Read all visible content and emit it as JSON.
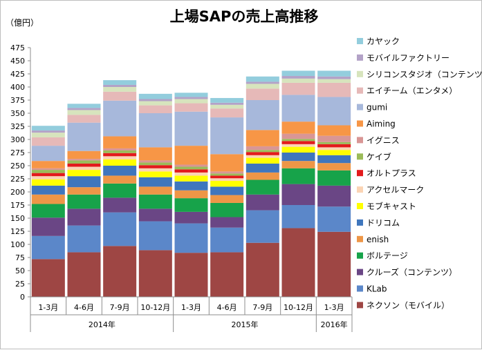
{
  "chart_data": {
    "type": "bar",
    "stacked": true,
    "title": "上場SAPの売上高推移",
    "unit_label": "（億円）",
    "ylim": [
      0,
      475
    ],
    "ytick_step": 25,
    "grid": false,
    "legend_position": "right",
    "categories": [
      "1-3月",
      "4-6月",
      "7-9月",
      "10-12月",
      "1-3月",
      "4-6月",
      "7-9月",
      "10-12月",
      "1-3月"
    ],
    "groups": [
      {
        "label": "2014年",
        "span": 4
      },
      {
        "label": "2015年",
        "span": 4
      },
      {
        "label": "2016年",
        "span": 1
      }
    ],
    "series": [
      {
        "name": "ネクソン（モバイル）",
        "color": "#9e4644",
        "values": [
          72,
          85,
          97,
          89,
          84,
          85,
          103,
          131,
          124
        ]
      },
      {
        "name": "KLab",
        "color": "#5b87c9",
        "values": [
          44,
          51,
          64,
          55,
          56,
          47,
          62,
          44,
          48
        ]
      },
      {
        "name": "クルーズ（コンテンツ）",
        "color": "#6a4685",
        "values": [
          35,
          32,
          28,
          24,
          22,
          20,
          30,
          40,
          40
        ]
      },
      {
        "name": "ボルテージ",
        "color": "#17a34a",
        "values": [
          26,
          27,
          27,
          27,
          26,
          27,
          28,
          30,
          29
        ]
      },
      {
        "name": "enish",
        "color": "#ee9647",
        "values": [
          18,
          14,
          15,
          15,
          15,
          15,
          14,
          14,
          14
        ]
      },
      {
        "name": "ドリコム",
        "color": "#3f76bd",
        "values": [
          17,
          21,
          19,
          18,
          17,
          16,
          17,
          16,
          15
        ]
      },
      {
        "name": "モブキャスト",
        "color": "#ffff00",
        "values": [
          12,
          12,
          12,
          11,
          11,
          11,
          11,
          11,
          10
        ]
      },
      {
        "name": "アクセルマーク",
        "color": "#fbd4b4",
        "values": [
          6,
          6,
          6,
          6,
          6,
          5,
          5,
          5,
          5
        ]
      },
      {
        "name": "オルトプラス",
        "color": "#e31a1c",
        "values": [
          6,
          6,
          6,
          6,
          6,
          5,
          6,
          6,
          6
        ]
      },
      {
        "name": "ケイブ",
        "color": "#9bbb59",
        "values": [
          6,
          6,
          5,
          5,
          5,
          4,
          4,
          4,
          4
        ]
      },
      {
        "name": "イグニス",
        "color": "#d99695",
        "values": [
          3,
          3,
          4,
          4,
          4,
          4,
          7,
          10,
          12
        ]
      },
      {
        "name": "Aiming",
        "color": "#f79646",
        "values": [
          14,
          15,
          23,
          25,
          36,
          33,
          31,
          23,
          20
        ]
      },
      {
        "name": "gumi",
        "color": "#a7b8db",
        "values": [
          29,
          54,
          68,
          65,
          65,
          70,
          57,
          51,
          54
        ]
      },
      {
        "name": "エイチーム（エンタメ）",
        "color": "#e6b9b8",
        "values": [
          16,
          15,
          17,
          15,
          16,
          17,
          22,
          23,
          27
        ]
      },
      {
        "name": "シリコンスタジオ（コンテンツ）",
        "color": "#d7e4bd",
        "values": [
          9,
          9,
          9,
          8,
          8,
          7,
          9,
          8,
          7
        ]
      },
      {
        "name": "モバイルファクトリー",
        "color": "#b3a2c7",
        "values": [
          4,
          4,
          4,
          4,
          4,
          4,
          4,
          5,
          5
        ]
      },
      {
        "name": "カヤック",
        "color": "#93cddd",
        "values": [
          9,
          8,
          9,
          10,
          8,
          9,
          10,
          10,
          11
        ]
      }
    ]
  }
}
